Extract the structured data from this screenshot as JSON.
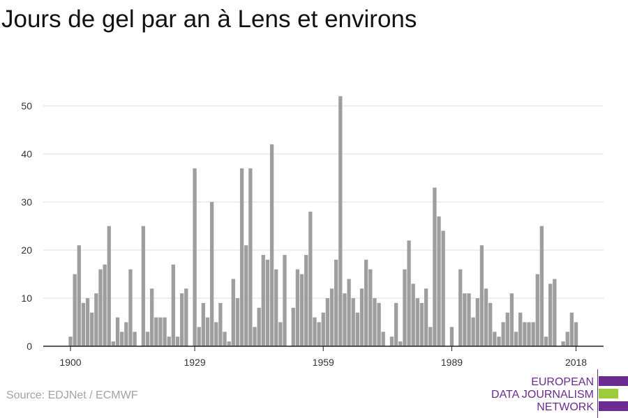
{
  "header": {
    "title": "Jours de gel par an à Lens et environs"
  },
  "footer": {
    "source": "Source: EDJNet / ECMWF"
  },
  "logo": {
    "line1": "EUROPEAN",
    "line2": "DATA JOURNALISM",
    "line3": "NETWORK",
    "bar_colors": [
      "#6a2c91",
      "#9bcd3a",
      "#6a2c91"
    ]
  },
  "colors": {
    "bar": "#9e9e9e",
    "grid": "#dddddd",
    "axis": "#222222",
    "tick_text": "#333333"
  },
  "chart_data": {
    "type": "bar",
    "title": "Jours de gel par an à Lens et environs",
    "xlabel": "",
    "ylabel": "",
    "ylim": [
      0,
      52
    ],
    "yticks": [
      0,
      10,
      20,
      30,
      40,
      50
    ],
    "xtick_labels": [
      "1900",
      "1929",
      "1959",
      "1989",
      "2018"
    ],
    "grid": "horizontal",
    "x": [
      1900,
      1901,
      1902,
      1903,
      1904,
      1905,
      1906,
      1907,
      1908,
      1909,
      1910,
      1911,
      1912,
      1913,
      1914,
      1915,
      1916,
      1917,
      1918,
      1919,
      1920,
      1921,
      1922,
      1923,
      1924,
      1925,
      1926,
      1927,
      1928,
      1929,
      1930,
      1931,
      1932,
      1933,
      1934,
      1935,
      1936,
      1937,
      1938,
      1939,
      1940,
      1941,
      1942,
      1943,
      1944,
      1945,
      1946,
      1947,
      1948,
      1949,
      1950,
      1951,
      1952,
      1953,
      1954,
      1955,
      1956,
      1957,
      1958,
      1959,
      1960,
      1961,
      1962,
      1963,
      1964,
      1965,
      1966,
      1967,
      1968,
      1969,
      1970,
      1971,
      1972,
      1973,
      1974,
      1975,
      1976,
      1977,
      1978,
      1979,
      1980,
      1981,
      1982,
      1983,
      1984,
      1985,
      1986,
      1987,
      1988,
      1989,
      1990,
      1991,
      1992,
      1993,
      1994,
      1995,
      1996,
      1997,
      1998,
      1999,
      2000,
      2001,
      2002,
      2003,
      2004,
      2005,
      2006,
      2007,
      2008,
      2009,
      2010,
      2011,
      2012,
      2013,
      2014,
      2015,
      2016,
      2017,
      2018
    ],
    "values": [
      2,
      15,
      21,
      9,
      10,
      7,
      11,
      16,
      17,
      25,
      1,
      6,
      3,
      5,
      16,
      3,
      0,
      25,
      3,
      12,
      6,
      6,
      6,
      2,
      17,
      2,
      11,
      12,
      0,
      37,
      4,
      9,
      6,
      30,
      5,
      9,
      3,
      1,
      14,
      10,
      37,
      21,
      37,
      4,
      8,
      19,
      18,
      42,
      16,
      5,
      19,
      0,
      8,
      16,
      15,
      19,
      28,
      6,
      5,
      7,
      10,
      12,
      18,
      52,
      11,
      14,
      10,
      7,
      12,
      18,
      16,
      10,
      9,
      3,
      0,
      2,
      9,
      1,
      16,
      22,
      13,
      10,
      9,
      12,
      4,
      33,
      27,
      24,
      0,
      4,
      0,
      16,
      11,
      11,
      6,
      10,
      21,
      12,
      9,
      3,
      2,
      5,
      7,
      11,
      3,
      7,
      5,
      5,
      5,
      15,
      25,
      2,
      13,
      14,
      0,
      1,
      3,
      7,
      5
    ]
  }
}
